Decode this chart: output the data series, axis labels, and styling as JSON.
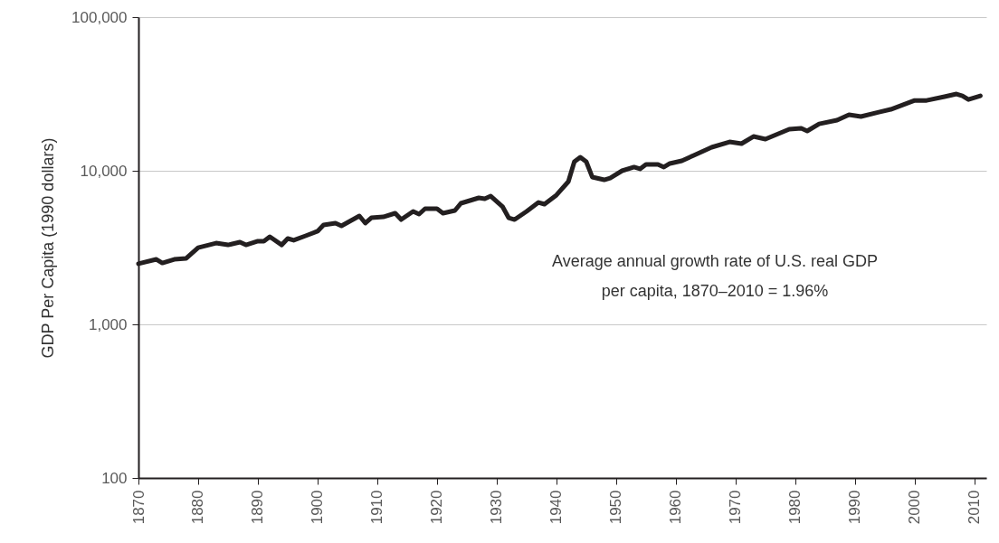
{
  "chart_data": {
    "type": "line",
    "ylabel": "GDP Per Capita (1990 dollars)",
    "annotations": [
      "Average annual growth rate of U.S. real GDP per capita, 1870–2010 = 1.96%"
    ],
    "x": [
      1870,
      1873,
      1874,
      1876,
      1878,
      1880,
      1883,
      1885,
      1887,
      1888,
      1890,
      1891,
      1892,
      1894,
      1895,
      1896,
      1898,
      1900,
      1901,
      1903,
      1904,
      1907,
      1908,
      1909,
      1911,
      1913,
      1914,
      1916,
      1917,
      1918,
      1920,
      1921,
      1923,
      1924,
      1925,
      1927,
      1928,
      1929,
      1931,
      1932,
      1933,
      1935,
      1937,
      1938,
      1940,
      1942,
      1943,
      1944,
      1945,
      1946,
      1948,
      1949,
      1951,
      1953,
      1954,
      1955,
      1957,
      1958,
      1959,
      1961,
      1963,
      1966,
      1969,
      1971,
      1973,
      1975,
      1979,
      1981,
      1982,
      1984,
      1987,
      1989,
      1991,
      1994,
      1996,
      2000,
      2002,
      2005,
      2007,
      2008,
      2009,
      2011
    ],
    "series": [
      {
        "color": "#231f20",
        "values": [
          2480,
          2650,
          2510,
          2650,
          2690,
          3160,
          3380,
          3290,
          3430,
          3290,
          3480,
          3480,
          3720,
          3290,
          3620,
          3530,
          3770,
          4040,
          4440,
          4560,
          4380,
          5080,
          4560,
          4940,
          5010,
          5290,
          4810,
          5440,
          5220,
          5660,
          5660,
          5290,
          5510,
          6140,
          6310,
          6660,
          6570,
          6840,
          5820,
          4940,
          4810,
          5440,
          6220,
          6060,
          6940,
          8500,
          11450,
          12250,
          11450,
          9100,
          8730,
          8970,
          10000,
          10560,
          10280,
          11000,
          11000,
          10560,
          11150,
          11610,
          12590,
          14220,
          15420,
          15010,
          16720,
          16060,
          18650,
          18900,
          18150,
          20200,
          21350,
          23170,
          22550,
          24100,
          25100,
          28710,
          28710,
          30340,
          31600,
          30760,
          29100,
          30760
        ]
      }
    ],
    "log": "y",
    "xlim": [
      1870,
      2012
    ],
    "xticks": [
      1870,
      1880,
      1890,
      1900,
      1910,
      1920,
      1930,
      1940,
      1950,
      1960,
      1970,
      1980,
      1990,
      2000,
      2010
    ],
    "ylim": [
      100,
      100000
    ],
    "yticks": [
      {
        "value": 100,
        "label": "100"
      },
      {
        "value": 1000,
        "label": "1,000"
      },
      {
        "value": 10000,
        "label": "10,000"
      },
      {
        "value": 100000,
        "label": "100,000"
      }
    ],
    "grid": "y",
    "marker": "none",
    "line_style": "solid"
  }
}
